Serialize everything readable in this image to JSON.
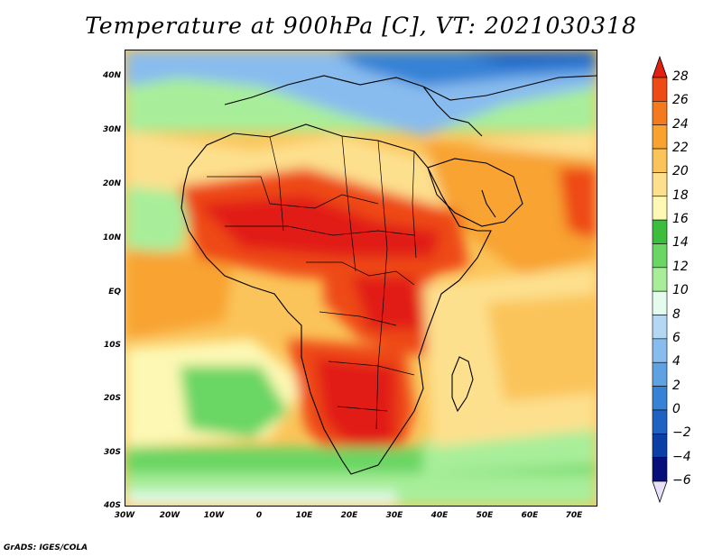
{
  "title": "Temperature at 900hPa [C], VT: 2021030318",
  "credit": "GrADS: IGES/COLA",
  "map": {
    "lat_labels": [
      "40N",
      "30N",
      "20N",
      "10N",
      "EQ",
      "10S",
      "20S",
      "30S",
      "40S"
    ],
    "lon_labels": [
      "30W",
      "20W",
      "10W",
      "0",
      "10E",
      "20E",
      "30E",
      "40E",
      "50E",
      "60E",
      "70E"
    ],
    "lat_range": [
      -40,
      44
    ],
    "lon_range": [
      -30,
      75
    ]
  },
  "colorbar": {
    "labels": [
      "28",
      "26",
      "24",
      "22",
      "20",
      "18",
      "16",
      "14",
      "12",
      "10",
      "8",
      "6",
      "4",
      "2",
      "0",
      "−2",
      "−4",
      "−6"
    ],
    "colors": [
      "#e11f12",
      "#ee4a16",
      "#f47a1e",
      "#f8a330",
      "#fbc45a",
      "#fde08e",
      "#fdf8b4",
      "#3cbe3c",
      "#6ad664",
      "#a8ee9a",
      "#e4fbee",
      "#b4d8f4",
      "#88bcee",
      "#5ea2e4",
      "#3682d6",
      "#1e62c4",
      "#0c3ea8",
      "#07107a"
    ]
  }
}
